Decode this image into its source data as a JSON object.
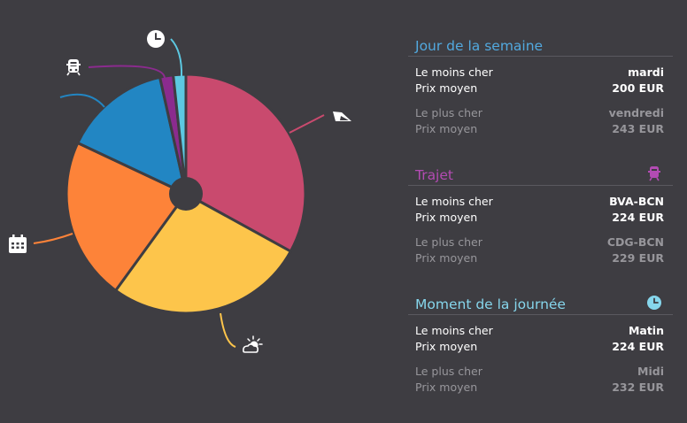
{
  "chart_data": {
    "type": "pie",
    "slices": [
      {
        "value": 33,
        "color": "#c94a6e",
        "icon": "plane-icon"
      },
      {
        "value": 27,
        "color": "#fdc54b",
        "icon": "weather-icon"
      },
      {
        "value": 22,
        "color": "#fd8339",
        "icon": "calendar-icon"
      },
      {
        "value": 14.5,
        "color": "#2286c3",
        "icon": "route-icon"
      },
      {
        "value": 1.8,
        "color": "#8b2b8e",
        "icon": "train-icon"
      },
      {
        "value": 1.7,
        "color": "#5cc9e2",
        "icon": "clock-icon"
      }
    ]
  },
  "sections": [
    {
      "title": "Jour de la semaine",
      "title_color": "#52a9df",
      "icon": "",
      "cheap": {
        "label1": "Le moins cher",
        "value1": "mardi",
        "label2": "Prix moyen",
        "value2": "200 EUR"
      },
      "expensive": {
        "label1": "Le plus cher",
        "value1": "vendredi",
        "label2": "Prix moyen",
        "value2": "243 EUR"
      }
    },
    {
      "title": "Trajet",
      "title_color": "#b34bb3",
      "icon": "train-icon",
      "cheap": {
        "label1": "Le moins cher",
        "value1": "BVA-BCN",
        "label2": "Prix moyen",
        "value2": "224 EUR"
      },
      "expensive": {
        "label1": "Le plus cher",
        "value1": "CDG-BCN",
        "label2": "Prix moyen",
        "value2": "229 EUR"
      }
    },
    {
      "title": "Moment de la journée",
      "title_color": "#86d6ec",
      "icon": "clock-icon",
      "cheap": {
        "label1": "Le moins cher",
        "value1": "Matin",
        "label2": "Prix moyen",
        "value2": "224 EUR"
      },
      "expensive": {
        "label1": "Le plus cher",
        "value1": "Midi",
        "label2": "Prix moyen",
        "value2": "232 EUR"
      }
    }
  ]
}
